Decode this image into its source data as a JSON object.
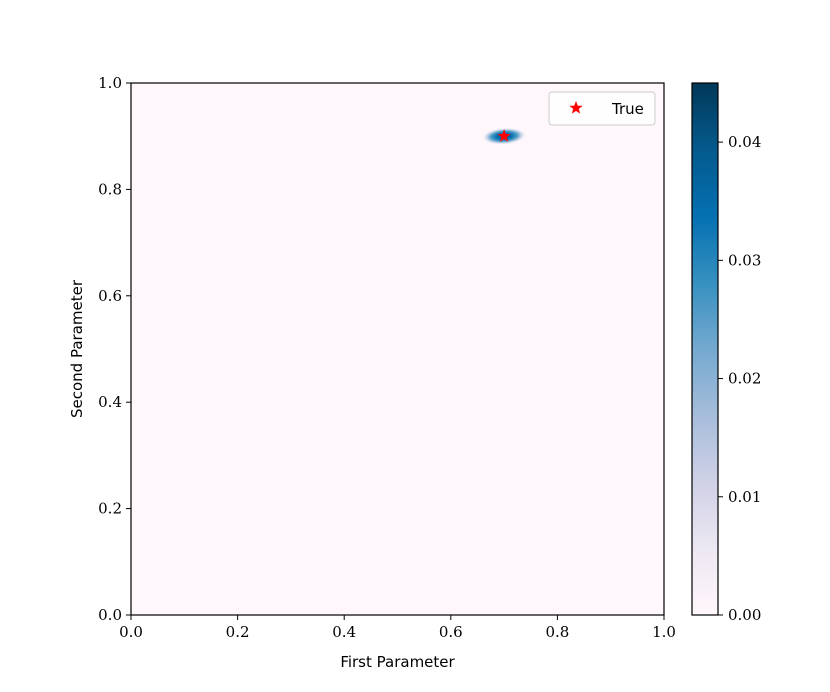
{
  "chart_data": {
    "type": "heatmap",
    "title": "",
    "xlabel": "First Parameter",
    "ylabel": "Second Parameter",
    "xlim": [
      0.0,
      1.0
    ],
    "ylim": [
      0.0,
      1.0
    ],
    "x_ticks": [
      "0.0",
      "0.2",
      "0.4",
      "0.6",
      "0.8",
      "1.0"
    ],
    "y_ticks": [
      "0.0",
      "0.2",
      "0.4",
      "0.6",
      "0.8",
      "1.0"
    ],
    "grid": false,
    "colormap": "PuBu",
    "background_color": "#fff7fb",
    "density_peak": {
      "x": 0.7,
      "y": 0.9,
      "spread_x": 0.03,
      "spread_y": 0.01,
      "max_value": 0.045
    },
    "markers": [
      {
        "name": "True",
        "x": 0.7,
        "y": 0.9,
        "color": "#ff0000",
        "shape": "star"
      }
    ],
    "legend": {
      "entries": [
        "True"
      ],
      "position": "top-right"
    },
    "colorbar": {
      "range": [
        0.0,
        0.045
      ],
      "ticks": [
        "0.00",
        "0.01",
        "0.02",
        "0.03",
        "0.04"
      ],
      "tick_values": [
        0.0,
        0.01,
        0.02,
        0.03,
        0.04
      ],
      "colors": [
        "#fff7fb",
        "#ece7f2",
        "#d0d1e6",
        "#a6bddb",
        "#74a9cf",
        "#3690c0",
        "#0570b0",
        "#045a8d",
        "#023858"
      ]
    }
  }
}
